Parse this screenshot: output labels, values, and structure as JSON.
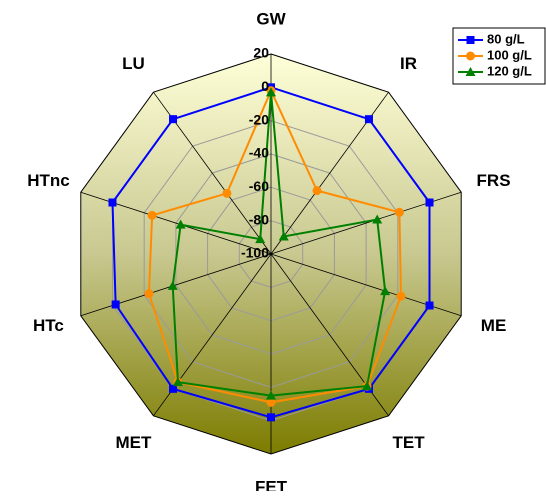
{
  "chart_data": {
    "type": "radar",
    "categories": [
      "GW",
      "IR",
      "FRS",
      "ME",
      "TET",
      "FET",
      "MET",
      "HTc",
      "HTnc",
      "LU"
    ],
    "series": [
      {
        "name": "80 g/L",
        "color": "#0000ff",
        "marker": "square",
        "values": [
          0,
          0,
          0,
          0,
          0,
          -2,
          0,
          -2,
          0,
          0
        ]
      },
      {
        "name": "100 g/L",
        "color": "#ff8c00",
        "marker": "circle",
        "values": [
          -2,
          -53,
          -19,
          -18,
          -2,
          -11,
          -5,
          -23,
          -25,
          -55
        ]
      },
      {
        "name": "120 g/L",
        "color": "#008000",
        "marker": "triangle",
        "values": [
          -3,
          -87,
          -33,
          -28,
          -2,
          -15,
          -5,
          -38,
          -43,
          -89
        ]
      }
    ],
    "rlim": [
      -100,
      20
    ],
    "rticks": [
      -100,
      -80,
      -60,
      -40,
      -20,
      0,
      20
    ],
    "grid": true,
    "legend": "upper right"
  }
}
